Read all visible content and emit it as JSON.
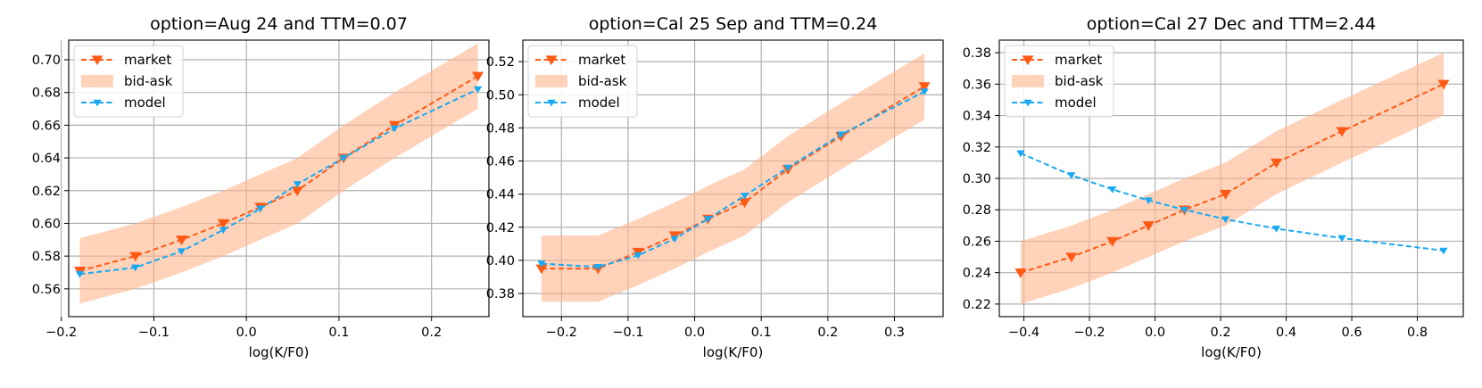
{
  "colors": {
    "market": "#ff5a14",
    "bidask_fill": "#ffb48c",
    "model": "#18a9f2",
    "grid": "#b0b0b0",
    "axes": "#000000"
  },
  "legend": {
    "placement": "upper-left",
    "entries": [
      "market",
      "bid-ask",
      "model"
    ]
  },
  "chart_data": [
    {
      "type": "line",
      "title": "option=Aug 24 and TTM=0.07",
      "xlabel": "log(K/F0)",
      "ylabel": "",
      "xlim": [
        -0.192,
        0.262
      ],
      "ylim": [
        0.543,
        0.712
      ],
      "xticks": [
        -0.2,
        -0.1,
        0.0,
        0.1,
        0.2
      ],
      "xtick_labels": [
        "−0.2",
        "−0.1",
        "0.0",
        "0.1",
        "0.2"
      ],
      "yticks": [
        0.56,
        0.58,
        0.6,
        0.62,
        0.64,
        0.66,
        0.68,
        0.7
      ],
      "ytick_labels": [
        "0.56",
        "0.58",
        "0.60",
        "0.62",
        "0.64",
        "0.66",
        "0.68",
        "0.70"
      ],
      "grid": true,
      "legend": "top-left",
      "series": [
        {
          "name": "market",
          "style": "dashed",
          "marker": "triangle-down",
          "x": [
            -0.18,
            -0.12,
            -0.07,
            -0.025,
            0.015,
            0.055,
            0.105,
            0.16,
            0.25
          ],
          "values": [
            0.571,
            0.58,
            0.59,
            0.6,
            0.61,
            0.62,
            0.64,
            0.66,
            0.69
          ]
        },
        {
          "name": "bid-ask",
          "style": "band",
          "x": [
            -0.18,
            -0.12,
            -0.07,
            -0.025,
            0.015,
            0.055,
            0.105,
            0.16,
            0.25
          ],
          "lower": [
            0.551,
            0.56,
            0.57,
            0.58,
            0.59,
            0.6,
            0.62,
            0.64,
            0.67
          ],
          "upper": [
            0.591,
            0.6,
            0.61,
            0.62,
            0.63,
            0.64,
            0.66,
            0.68,
            0.71
          ]
        },
        {
          "name": "model",
          "style": "dashed",
          "marker": "triangle-down",
          "x": [
            -0.18,
            -0.12,
            -0.07,
            -0.025,
            0.015,
            0.055,
            0.105,
            0.16,
            0.25
          ],
          "values": [
            0.569,
            0.573,
            0.583,
            0.596,
            0.609,
            0.624,
            0.64,
            0.658,
            0.682
          ]
        }
      ]
    },
    {
      "type": "line",
      "title": "option=Cal 25 Sep and TTM=0.24",
      "xlabel": "log(K/F0)",
      "ylabel": "",
      "xlim": [
        -0.258,
        0.373
      ],
      "ylim": [
        0.366,
        0.533
      ],
      "xticks": [
        -0.2,
        -0.1,
        0.0,
        0.1,
        0.2,
        0.3
      ],
      "xtick_labels": [
        "−0.2",
        "−0.1",
        "0.0",
        "0.1",
        "0.2",
        "0.3"
      ],
      "yticks": [
        0.38,
        0.4,
        0.42,
        0.44,
        0.46,
        0.48,
        0.5,
        0.52
      ],
      "ytick_labels": [
        "0.38",
        "0.40",
        "0.42",
        "0.44",
        "0.46",
        "0.48",
        "0.50",
        "0.52"
      ],
      "grid": true,
      "legend": "top-left",
      "series": [
        {
          "name": "market",
          "style": "dashed",
          "marker": "triangle-down",
          "x": [
            -0.23,
            -0.145,
            -0.085,
            -0.03,
            0.02,
            0.075,
            0.14,
            0.22,
            0.345
          ],
          "values": [
            0.395,
            0.395,
            0.405,
            0.415,
            0.425,
            0.435,
            0.455,
            0.475,
            0.505
          ]
        },
        {
          "name": "bid-ask",
          "style": "band",
          "x": [
            -0.23,
            -0.145,
            -0.085,
            -0.03,
            0.02,
            0.075,
            0.14,
            0.22,
            0.345
          ],
          "lower": [
            0.375,
            0.375,
            0.385,
            0.395,
            0.405,
            0.415,
            0.435,
            0.455,
            0.485
          ],
          "upper": [
            0.415,
            0.415,
            0.425,
            0.435,
            0.445,
            0.455,
            0.475,
            0.495,
            0.525
          ]
        },
        {
          "name": "model",
          "style": "dashed",
          "marker": "triangle-down",
          "x": [
            -0.23,
            -0.145,
            -0.085,
            -0.03,
            0.02,
            0.075,
            0.14,
            0.22,
            0.345
          ],
          "values": [
            0.398,
            0.396,
            0.403,
            0.413,
            0.425,
            0.439,
            0.456,
            0.476,
            0.502
          ]
        }
      ]
    },
    {
      "type": "line",
      "title": "option=Cal 27 Dec and TTM=2.44",
      "xlabel": "log(K/F0)",
      "ylabel": "",
      "xlim": [
        -0.475,
        0.94
      ],
      "ylim": [
        0.212,
        0.388
      ],
      "xticks": [
        -0.4,
        -0.2,
        0.0,
        0.2,
        0.4,
        0.6,
        0.8
      ],
      "xtick_labels": [
        "−0.4",
        "−0.2",
        "0.0",
        "0.2",
        "0.4",
        "0.6",
        "0.8"
      ],
      "yticks": [
        0.22,
        0.24,
        0.26,
        0.28,
        0.3,
        0.32,
        0.34,
        0.36,
        0.38
      ],
      "ytick_labels": [
        "0.22",
        "0.24",
        "0.26",
        "0.28",
        "0.30",
        "0.32",
        "0.34",
        "0.36",
        "0.38"
      ],
      "grid": true,
      "legend": "top-left",
      "series": [
        {
          "name": "market",
          "style": "dashed",
          "marker": "triangle-down",
          "x": [
            -0.41,
            -0.255,
            -0.13,
            -0.02,
            0.09,
            0.215,
            0.37,
            0.57,
            0.88
          ],
          "values": [
            0.24,
            0.25,
            0.26,
            0.27,
            0.28,
            0.29,
            0.31,
            0.33,
            0.36
          ]
        },
        {
          "name": "bid-ask",
          "style": "band",
          "x": [
            -0.41,
            -0.255,
            -0.13,
            -0.02,
            0.09,
            0.215,
            0.37,
            0.57,
            0.88
          ],
          "lower": [
            0.22,
            0.23,
            0.24,
            0.25,
            0.26,
            0.27,
            0.29,
            0.31,
            0.34
          ],
          "upper": [
            0.26,
            0.27,
            0.28,
            0.29,
            0.3,
            0.31,
            0.33,
            0.35,
            0.38
          ]
        },
        {
          "name": "model",
          "style": "dashed",
          "marker": "triangle-down",
          "x": [
            -0.41,
            -0.255,
            -0.13,
            -0.02,
            0.09,
            0.215,
            0.37,
            0.57,
            0.88
          ],
          "values": [
            0.316,
            0.302,
            0.293,
            0.286,
            0.28,
            0.274,
            0.268,
            0.262,
            0.254
          ]
        }
      ]
    }
  ]
}
